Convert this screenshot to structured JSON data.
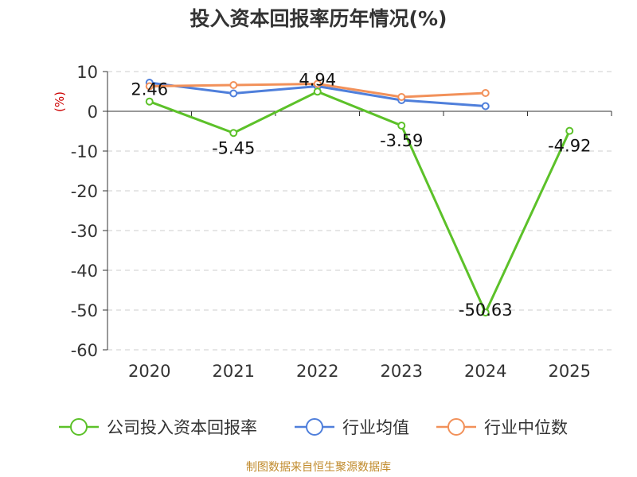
{
  "title": "投入资本回报率历年情况(%)",
  "source_note": "制图数据来自恒生聚源数据库",
  "colors": {
    "company": "#5cc129",
    "industry_avg": "#4f7fdb",
    "industry_median": "#f2915a",
    "ylabel": "#cc0000",
    "source": "#c08a2b"
  },
  "chart_data": {
    "type": "line",
    "title": "投入资本回报率历年情况(%)",
    "ylabel": "(%)",
    "xlabel": "",
    "categories": [
      "2020",
      "2021",
      "2022",
      "2023",
      "2024",
      "2025"
    ],
    "ylim": [
      -60,
      10
    ],
    "yticks": [
      10,
      0,
      -10,
      -20,
      -30,
      -40,
      -50,
      -60
    ],
    "grid": true,
    "legend_position": "bottom",
    "series": [
      {
        "name": "公司投入资本回报率",
        "values": [
          2.46,
          -5.45,
          4.94,
          -3.59,
          -50.63,
          -4.92
        ],
        "labels": [
          "2.46",
          "-5.45",
          "4.94",
          "-3.59",
          "-50.63",
          "-4.92"
        ]
      },
      {
        "name": "行业均值",
        "values": [
          7.2,
          4.5,
          6.3,
          2.8,
          1.3,
          null
        ]
      },
      {
        "name": "行业中位数",
        "values": [
          6.3,
          6.6,
          6.9,
          3.6,
          4.6,
          null
        ]
      }
    ]
  }
}
